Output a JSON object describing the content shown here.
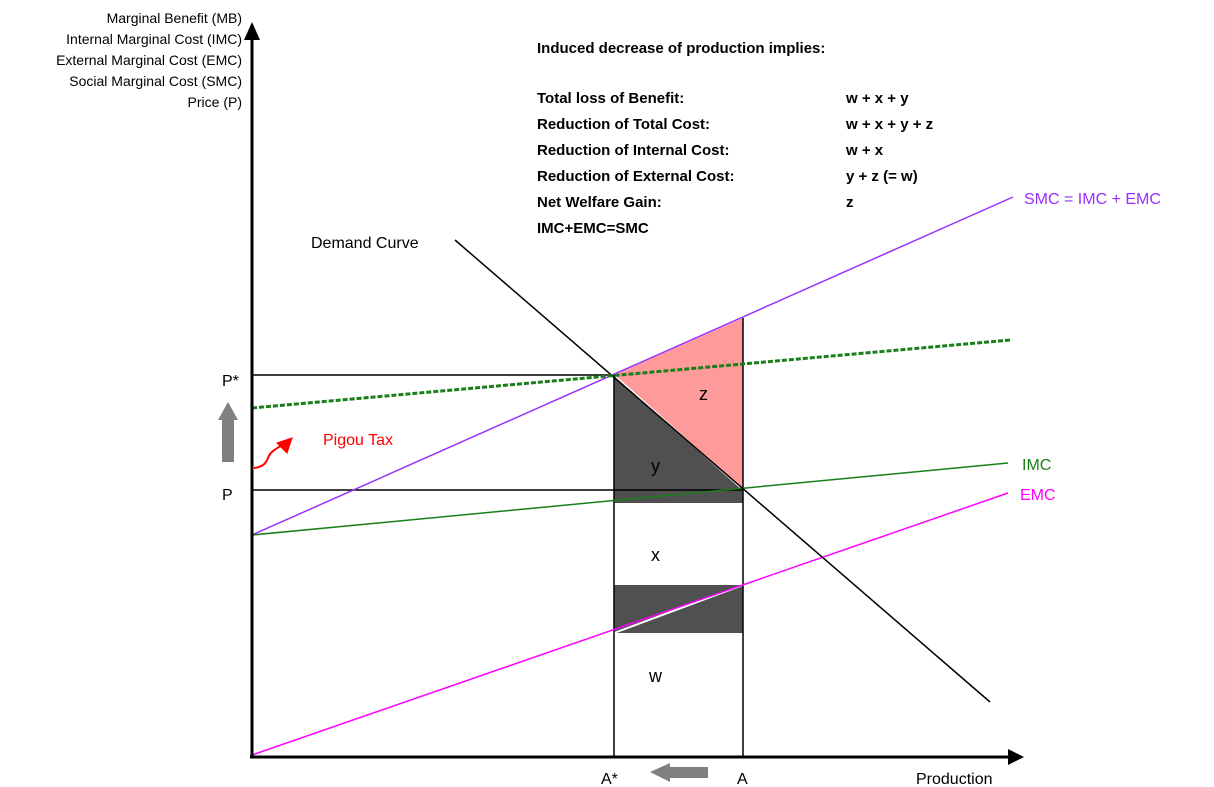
{
  "axes": {
    "y_labels": [
      "Marginal Benefit (MB)",
      "Internal Marginal Cost (IMC)",
      "External Marginal Cost (EMC)",
      "Social Marginal Cost (SMC)",
      "Price (P)"
    ],
    "x_label": "Production",
    "y_ticks": {
      "p_star": "P*",
      "p": "P"
    },
    "x_ticks": {
      "a_star": "A*",
      "a": "A"
    }
  },
  "curves": {
    "demand": "Demand Curve",
    "smc": "SMC = IMC + EMC",
    "imc": "IMC",
    "emc": "EMC",
    "pigou": "Pigou Tax"
  },
  "regions": {
    "w": "w",
    "x": "x",
    "y": "y",
    "z": "z"
  },
  "box": {
    "heading": "Induced decrease of production implies:",
    "rows": [
      {
        "label": "Total loss of Benefit:",
        "value": "w + x + y"
      },
      {
        "label": "Reduction of Total Cost:",
        "value": "w + x + y + z"
      },
      {
        "label": "Reduction of Internal Cost:",
        "value": "w + x"
      },
      {
        "label": "Reduction of External Cost:",
        "value": "y + z (= w)"
      },
      {
        "label": "Net Welfare Gain:",
        "value": "z"
      },
      {
        "label": "IMC+EMC=SMC",
        "value": ""
      }
    ]
  },
  "colors": {
    "smc": "#9b30ff",
    "imc": "#1a7f1a",
    "emc": "#ff00ff",
    "tax_line": "#1a7f1a",
    "pigou": "#ff0000",
    "z_fill": "#ff9a9a",
    "dark_fill": "#505050",
    "arrow_gray": "#808080"
  }
}
